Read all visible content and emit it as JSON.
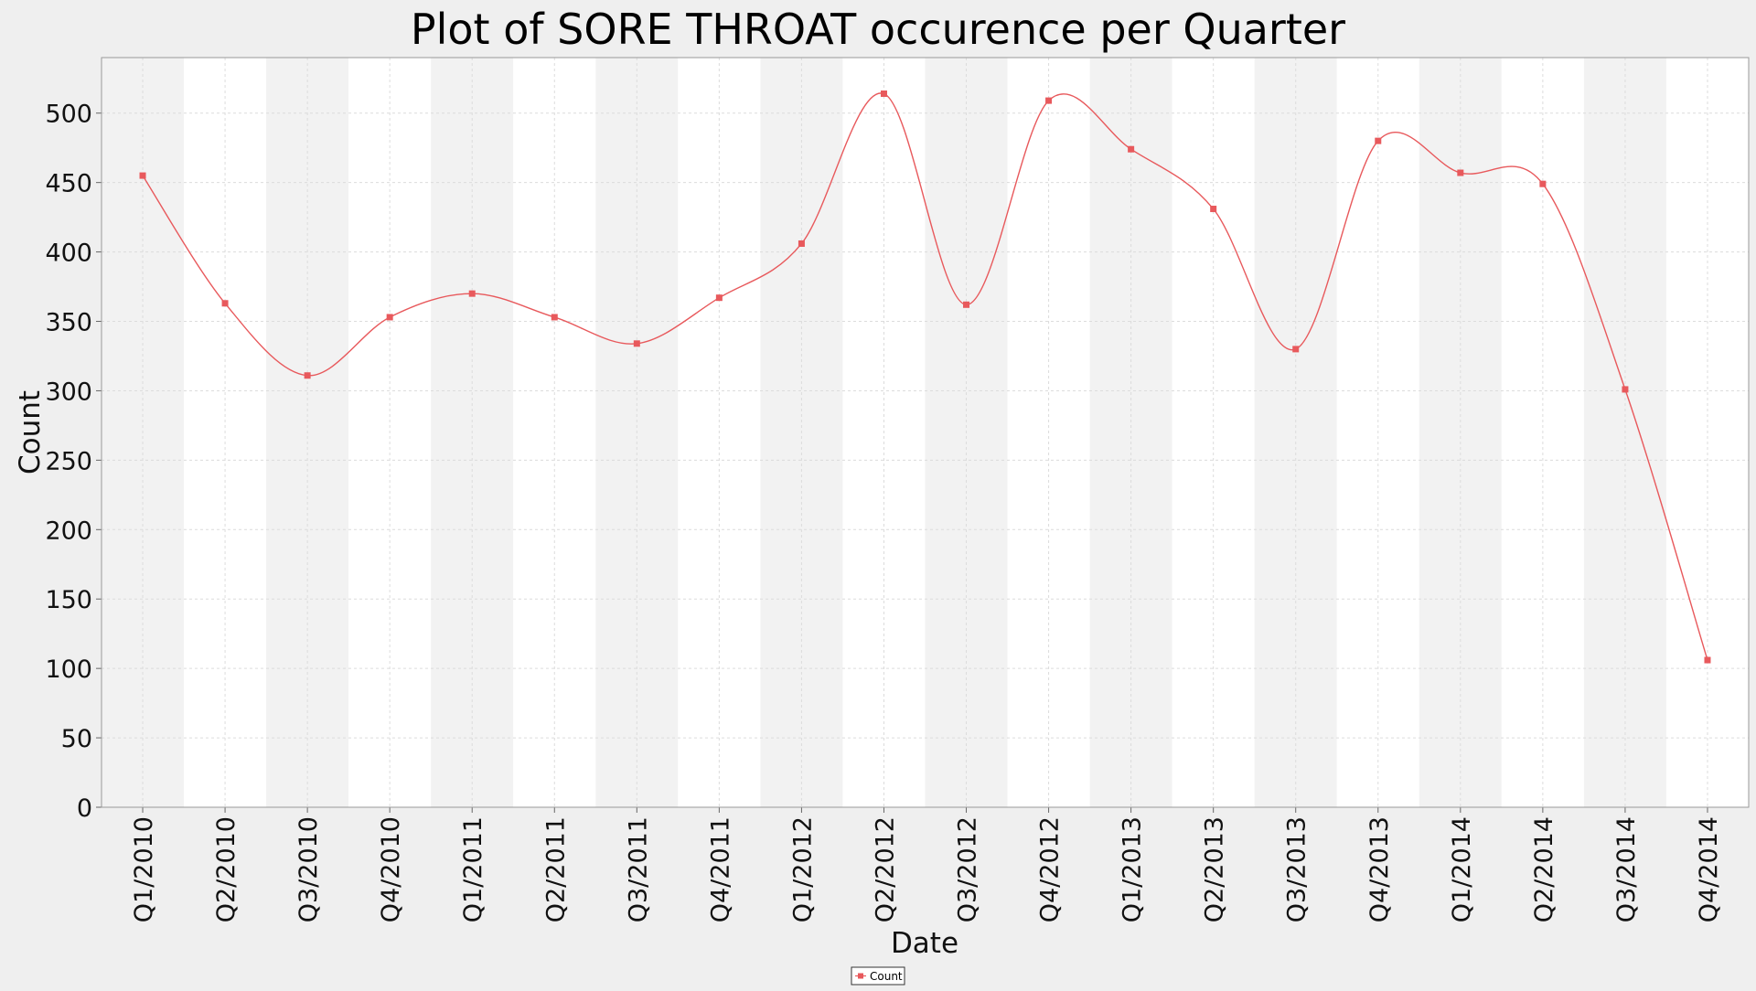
{
  "chart_data": {
    "type": "line",
    "title": "Plot of SORE THROAT occurence per Quarter",
    "xlabel": "Date",
    "ylabel": "Count",
    "ylim": [
      0,
      540
    ],
    "yticks": [
      0,
      50,
      100,
      150,
      200,
      250,
      300,
      350,
      400,
      450,
      500
    ],
    "grid": true,
    "legend_position": "bottom-center",
    "categories": [
      "Q1/2010",
      "Q2/2010",
      "Q3/2010",
      "Q4/2010",
      "Q1/2011",
      "Q2/2011",
      "Q3/2011",
      "Q4/2011",
      "Q1/2012",
      "Q2/2012",
      "Q3/2012",
      "Q4/2012",
      "Q1/2013",
      "Q2/2013",
      "Q3/2013",
      "Q4/2013",
      "Q1/2014",
      "Q2/2014",
      "Q3/2014",
      "Q4/2014"
    ],
    "series": [
      {
        "name": "Count",
        "color": "#e8595c",
        "values": [
          455,
          363,
          311,
          353,
          370,
          353,
          334,
          367,
          406,
          514,
          362,
          509,
          474,
          431,
          330,
          480,
          457,
          449,
          301,
          106
        ]
      }
    ]
  }
}
